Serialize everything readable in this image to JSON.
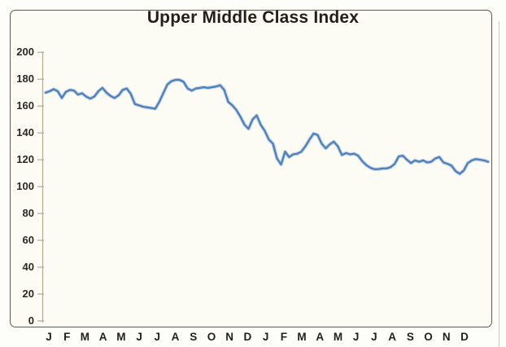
{
  "title": "Upper Middle Class Index",
  "colors": {
    "line": "#4f81bd",
    "axis": "#b1aa95",
    "frame_border": "#5f5a50",
    "chart_background": "#fcfbf4",
    "page_background": "#fdfdfa",
    "text": "#221f1b"
  },
  "chart_data": {
    "type": "line",
    "title": "Upper Middle Class Index",
    "xlabel": "",
    "ylabel": "",
    "ylim": [
      0,
      200
    ],
    "y_ticks": [
      0,
      20,
      40,
      60,
      80,
      100,
      120,
      140,
      160,
      180,
      200
    ],
    "x_tick_labels": [
      "J",
      "F",
      "M",
      "A",
      "M",
      "J",
      "J",
      "A",
      "S",
      "O",
      "N",
      "D",
      "J",
      "F",
      "M",
      "A",
      "M",
      "J",
      "J",
      "A",
      "S",
      "O",
      "N",
      "D"
    ],
    "x_span_months": 24,
    "cadence": "weekly",
    "grid": false,
    "legend": false,
    "series": [
      {
        "name": "Upper Middle Class Index",
        "values": [
          170,
          171,
          172.5,
          171,
          166,
          170.5,
          172,
          171.5,
          168.5,
          169.5,
          167,
          165.5,
          167,
          171,
          173.5,
          170,
          167.5,
          166,
          168,
          172,
          173,
          169,
          161.5,
          160.5,
          159.5,
          159,
          158.5,
          158,
          163,
          169.5,
          176,
          178.5,
          179.5,
          179.5,
          178,
          173,
          171.5,
          173,
          173.5,
          174,
          173.5,
          174,
          174.5,
          175.5,
          172,
          163,
          160.5,
          157,
          152,
          146,
          143,
          150,
          153,
          146,
          141.5,
          135,
          132,
          121,
          116.5,
          126,
          122,
          124,
          124.5,
          126,
          130,
          135,
          139.5,
          138.5,
          132,
          128.5,
          131.5,
          133.5,
          130,
          123.5,
          125,
          124,
          124.5,
          123,
          119,
          116,
          114,
          113,
          113,
          113.5,
          113.5,
          114.5,
          117,
          122.5,
          123,
          120,
          117.5,
          119.5,
          118.5,
          119.5,
          118,
          118.5,
          121,
          122,
          118,
          117,
          115.5,
          111.5,
          109.5,
          112,
          117.5,
          119.5,
          120.5,
          120,
          119.5,
          118.5
        ]
      }
    ]
  }
}
